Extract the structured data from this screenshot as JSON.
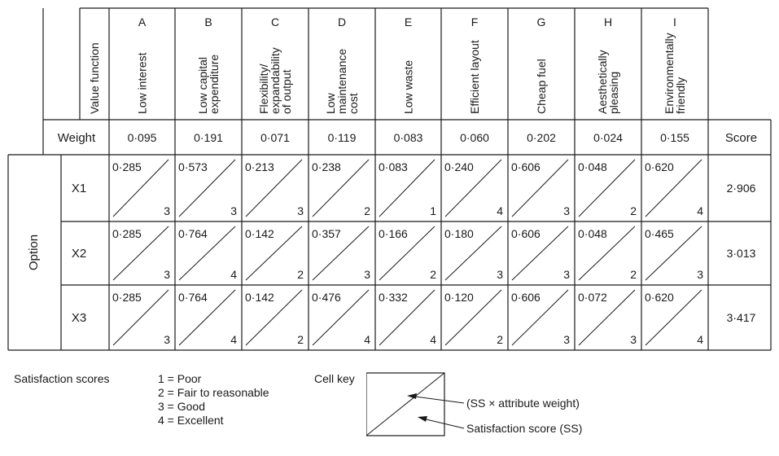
{
  "table": {
    "value_function_label": "Value function",
    "weight_label": "Weight",
    "score_label": "Score",
    "option_label": "Option",
    "attributes": [
      {
        "letter": "A",
        "name": [
          "Low interest"
        ],
        "weight": "0·095"
      },
      {
        "letter": "B",
        "name": [
          "Low capital",
          "expenditure"
        ],
        "weight": "0·191"
      },
      {
        "letter": "C",
        "name": [
          "Flexibility/",
          "expandability",
          "of output"
        ],
        "weight": "0·071"
      },
      {
        "letter": "D",
        "name": [
          "Low",
          "maintenance",
          "cost"
        ],
        "weight": "0·119"
      },
      {
        "letter": "E",
        "name": [
          "Low waste"
        ],
        "weight": "0·083"
      },
      {
        "letter": "F",
        "name": [
          "Efficient layout"
        ],
        "weight": "0·060"
      },
      {
        "letter": "G",
        "name": [
          "Cheap fuel"
        ],
        "weight": "0·202"
      },
      {
        "letter": "H",
        "name": [
          "Aesthetically",
          "pleasing"
        ],
        "weight": "0·024"
      },
      {
        "letter": "I",
        "name": [
          "Environmentally",
          "friendly"
        ],
        "weight": "0·155"
      }
    ],
    "options": [
      {
        "name": "X1",
        "score": "2·906",
        "cells": [
          [
            "0·285",
            "3"
          ],
          [
            "0·573",
            "3"
          ],
          [
            "0·213",
            "3"
          ],
          [
            "0·238",
            "2"
          ],
          [
            "0·083",
            "1"
          ],
          [
            "0·240",
            "4"
          ],
          [
            "0·606",
            "3"
          ],
          [
            "0·048",
            "2"
          ],
          [
            "0·620",
            "4"
          ]
        ]
      },
      {
        "name": "X2",
        "score": "3·013",
        "cells": [
          [
            "0·285",
            "3"
          ],
          [
            "0·764",
            "4"
          ],
          [
            "0·142",
            "2"
          ],
          [
            "0·357",
            "3"
          ],
          [
            "0·166",
            "2"
          ],
          [
            "0·180",
            "3"
          ],
          [
            "0·606",
            "3"
          ],
          [
            "0·048",
            "2"
          ],
          [
            "0·465",
            "3"
          ]
        ]
      },
      {
        "name": "X3",
        "score": "3·417",
        "cells": [
          [
            "0·285",
            "3"
          ],
          [
            "0·764",
            "4"
          ],
          [
            "0·142",
            "2"
          ],
          [
            "0·476",
            "4"
          ],
          [
            "0·332",
            "4"
          ],
          [
            "0·120",
            "2"
          ],
          [
            "0·606",
            "3"
          ],
          [
            "0·072",
            "3"
          ],
          [
            "0·620",
            "4"
          ]
        ]
      }
    ]
  },
  "legend": {
    "title": "Satisfaction scores",
    "items": [
      "1 = Poor",
      "2 = Fair to reasonable",
      "3 = Good",
      "4 = Excellent"
    ],
    "cell_key_label": "Cell key",
    "cell_key_top": "(SS × attribute weight)",
    "cell_key_bottom": "Satisfaction score (SS)"
  }
}
